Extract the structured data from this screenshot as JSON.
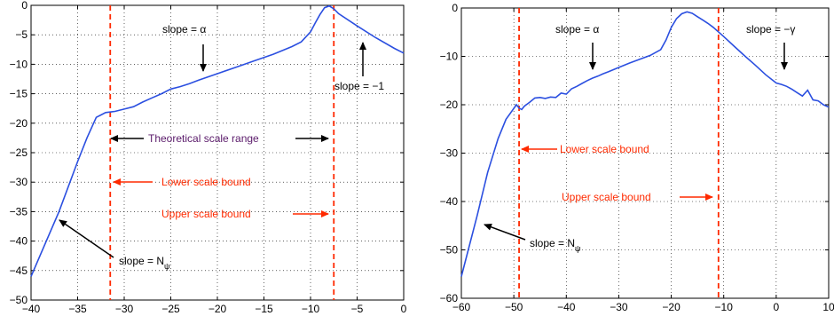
{
  "colors": {
    "line": "#2b4fe0",
    "bound": "#ff2a00",
    "text_red": "#ff2a00",
    "text_purple": "#5a1a6a",
    "grid": "#000000"
  },
  "chart_data": [
    {
      "type": "line",
      "xlim": [
        -40,
        0
      ],
      "ylim": [
        -50,
        0
      ],
      "xticks": [
        -40,
        -35,
        -30,
        -25,
        -20,
        -15,
        -10,
        -5,
        0
      ],
      "yticks": [
        0,
        -5,
        -10,
        -15,
        -20,
        -25,
        -30,
        -35,
        -40,
        -45,
        -50
      ],
      "xtick_labels": [
        "−40",
        "−35",
        "−30",
        "−25",
        "−20",
        "−15",
        "−10",
        "−5",
        "0"
      ],
      "ytick_labels": [
        "0",
        "−5",
        "−10",
        "−15",
        "−20",
        "−25",
        "−30",
        "−35",
        "−40",
        "−45",
        "−50"
      ],
      "grid": true,
      "series": [
        {
          "x": [
            -40,
            -37,
            -35,
            -34,
            -33,
            -32.5,
            -32,
            -31,
            -30,
            -29,
            -28,
            -27,
            -26,
            -25,
            -24,
            -23,
            -22,
            -20,
            -18,
            -16,
            -14,
            -12,
            -11,
            -10,
            -9.5,
            -9,
            -8.5,
            -8,
            -7.5,
            -7,
            -5,
            -3,
            -1,
            0
          ],
          "y": [
            -46,
            -35,
            -26.5,
            -22.5,
            -19,
            -18.6,
            -18.2,
            -18,
            -17.6,
            -17.2,
            -16.4,
            -15.7,
            -15.0,
            -14.2,
            -13.8,
            -13.3,
            -12.7,
            -11.6,
            -10.5,
            -9.4,
            -8.3,
            -7.0,
            -6.2,
            -4.5,
            -3.0,
            -1.6,
            -0.4,
            -0.1,
            -0.6,
            -1.4,
            -3.5,
            -5.5,
            -7.3,
            -8.1
          ]
        }
      ],
      "bounds": [
        -31.5,
        -7.5
      ],
      "annotations": {
        "slope_alpha": "slope = α",
        "slope_neg1": "slope = −1",
        "theoretical_range": "Theoretical scale range",
        "lower_bound": "Lower scale bound",
        "upper_bound": "Upper scale bound",
        "slope_n": "slope = N",
        "slope_n_sub": "ψ"
      }
    },
    {
      "type": "line",
      "xlim": [
        -60,
        10
      ],
      "ylim": [
        -60,
        0
      ],
      "xticks": [
        -60,
        -50,
        -40,
        -30,
        -20,
        -10,
        0,
        10
      ],
      "yticks": [
        0,
        -10,
        -20,
        -30,
        -40,
        -50,
        -60
      ],
      "xtick_labels": [
        "−60",
        "−50",
        "−40",
        "−30",
        "−20",
        "−10",
        "0",
        "10"
      ],
      "ytick_labels": [
        "0",
        "−10",
        "−20",
        "−30",
        "−40",
        "−50",
        "−60"
      ],
      "grid": true,
      "series": [
        {
          "x": [
            -60,
            -57,
            -55,
            -53,
            -51.5,
            -50.5,
            -49.5,
            -49,
            -48.5,
            -48,
            -47,
            -46,
            -45,
            -44,
            -43,
            -42,
            -41,
            -40,
            -39,
            -38,
            -37,
            -36,
            -35,
            -34,
            -33,
            -32,
            -30,
            -28,
            -26,
            -24,
            -22,
            -21,
            -20,
            -19,
            -18,
            -17,
            -16,
            -15,
            -14,
            -13,
            -12,
            -10,
            -8,
            -6,
            -4,
            -2,
            0,
            1,
            2,
            3,
            4,
            5,
            6,
            7,
            8,
            9,
            10
          ],
          "y": [
            -55.5,
            -43,
            -34,
            -27,
            -23,
            -21.5,
            -20,
            -20.7,
            -21,
            -20.3,
            -19.5,
            -18.6,
            -18.5,
            -18.7,
            -18.4,
            -18.5,
            -17.6,
            -17.8,
            -16.7,
            -16.2,
            -15.6,
            -15.0,
            -14.5,
            -14.1,
            -13.6,
            -13.2,
            -12.3,
            -11.4,
            -10.6,
            -9.8,
            -8.6,
            -6.6,
            -4.0,
            -2.2,
            -1.2,
            -0.8,
            -1.1,
            -1.8,
            -2.5,
            -3.2,
            -4.0,
            -5.9,
            -7.9,
            -9.9,
            -11.8,
            -13.8,
            -15.5,
            -15.8,
            -16.2,
            -16.8,
            -17.5,
            -18.2,
            -17.0,
            -19.0,
            -19.2,
            -20.0,
            -20.5
          ]
        }
      ],
      "bounds": [
        -49,
        -11
      ],
      "annotations": {
        "slope_alpha": "slope = α",
        "slope_gamma": "slope = −γ",
        "lower_bound": "Lower scale bound",
        "upper_bound": "Upper scale bound",
        "slope_n": "slope = N",
        "slope_n_sub": "ψ"
      }
    }
  ]
}
